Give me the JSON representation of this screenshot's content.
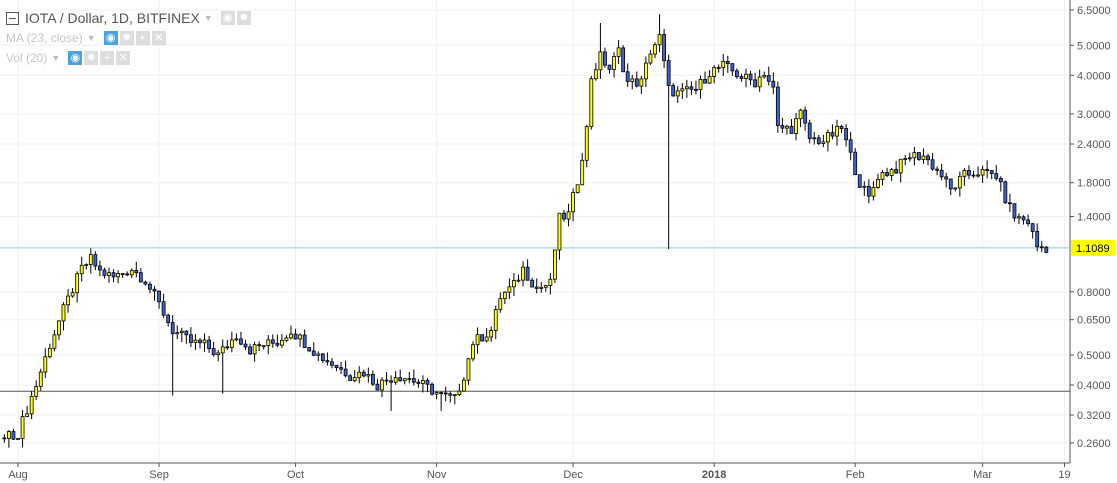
{
  "legend": {
    "title": "IOTA / Dollar, 1D, BITFINEX",
    "ma_label": "MA (23, close)",
    "vol_label": "Vol (20)"
  },
  "colors": {
    "up": "#ffff00",
    "down": "#3f62d6",
    "last_price_line": "#7fd3dc",
    "last_price_bg": "#ffff00",
    "hline": "#555555",
    "grid": "#f0f0f0"
  },
  "chart_data": {
    "type": "candlestick",
    "title": "IOTA / Dollar, 1D, BITFINEX",
    "y_scale": "log",
    "ylim": [
      0.235,
      7.0
    ],
    "xlim_days_from_aug1": [
      -4,
      233
    ],
    "y_ticks": [
      "6.5000",
      "5.0000",
      "4.0000",
      "3.0000",
      "2.4000",
      "1.8000",
      "1.4000",
      "0.8000",
      "0.6500",
      "0.5000",
      "0.4000",
      "0.3200",
      "0.2600"
    ],
    "x_ticks": [
      {
        "label": "Aug",
        "day": 0
      },
      {
        "label": "Sep",
        "day": 31
      },
      {
        "label": "Oct",
        "day": 61
      },
      {
        "label": "Nov",
        "day": 92
      },
      {
        "label": "Dec",
        "day": 122
      },
      {
        "label": "2018",
        "day": 153
      },
      {
        "label": "Feb",
        "day": 184
      },
      {
        "label": "Mar",
        "day": 212
      },
      {
        "label": "19",
        "day": 230
      }
    ],
    "last_price": 1.1089,
    "last_price_label": "1.1089",
    "horizontal_line": 0.382,
    "close_anchors": [
      [
        -3,
        0.27
      ],
      [
        0,
        0.28
      ],
      [
        4,
        0.4
      ],
      [
        7,
        0.54
      ],
      [
        10,
        0.7
      ],
      [
        14,
        0.95
      ],
      [
        16,
        1.02
      ],
      [
        18,
        0.93
      ],
      [
        21,
        0.89
      ],
      [
        25,
        0.95
      ],
      [
        28,
        0.87
      ],
      [
        31,
        0.73
      ],
      [
        34,
        0.6
      ],
      [
        38,
        0.55
      ],
      [
        41,
        0.54
      ],
      [
        44,
        0.5
      ],
      [
        48,
        0.58
      ],
      [
        51,
        0.52
      ],
      [
        54,
        0.54
      ],
      [
        57,
        0.55
      ],
      [
        60,
        0.6
      ],
      [
        63,
        0.55
      ],
      [
        66,
        0.5
      ],
      [
        70,
        0.46
      ],
      [
        73,
        0.43
      ],
      [
        76,
        0.44
      ],
      [
        79,
        0.4
      ],
      [
        83,
        0.43
      ],
      [
        86,
        0.42
      ],
      [
        89,
        0.4
      ],
      [
        93,
        0.37
      ],
      [
        96,
        0.36
      ],
      [
        98,
        0.43
      ],
      [
        100,
        0.55
      ],
      [
        104,
        0.6
      ],
      [
        106,
        0.77
      ],
      [
        109,
        0.84
      ],
      [
        111,
        0.95
      ],
      [
        114,
        0.82
      ],
      [
        117,
        0.85
      ],
      [
        118,
        1.1
      ],
      [
        119,
        1.38
      ],
      [
        121,
        1.42
      ],
      [
        123,
        1.83
      ],
      [
        125,
        2.68
      ],
      [
        126,
        3.96
      ],
      [
        128,
        4.6
      ],
      [
        130,
        4.2
      ],
      [
        132,
        4.8
      ],
      [
        134,
        3.8
      ],
      [
        137,
        3.8
      ],
      [
        139,
        4.8
      ],
      [
        141,
        5.3
      ],
      [
        143,
        3.6
      ],
      [
        145,
        3.5
      ],
      [
        149,
        3.6
      ],
      [
        152,
        4.1
      ],
      [
        155,
        4.3
      ],
      [
        159,
        3.96
      ],
      [
        162,
        3.8
      ],
      [
        164,
        4.1
      ],
      [
        166,
        3.6
      ],
      [
        167,
        2.7
      ],
      [
        170,
        2.7
      ],
      [
        172,
        3.0
      ],
      [
        174,
        2.5
      ],
      [
        177,
        2.46
      ],
      [
        181,
        2.7
      ],
      [
        183,
        2.2
      ],
      [
        185,
        1.8
      ],
      [
        187,
        1.6
      ],
      [
        189,
        1.9
      ],
      [
        193,
        2.0
      ],
      [
        196,
        2.2
      ],
      [
        199,
        2.2
      ],
      [
        203,
        1.9
      ],
      [
        205,
        1.7
      ],
      [
        208,
        1.9
      ],
      [
        211,
        1.95
      ],
      [
        215,
        1.9
      ],
      [
        217,
        1.6
      ],
      [
        219,
        1.4
      ],
      [
        222,
        1.35
      ],
      [
        224,
        1.12
      ],
      [
        226,
        1.11
      ]
    ],
    "wick_extremes": [
      {
        "day": 143,
        "low": 1.1
      },
      {
        "day": 34,
        "low": 0.37
      },
      {
        "day": 45,
        "low": 0.375
      },
      {
        "day": 82,
        "low": 0.33
      },
      {
        "day": 93,
        "low": 0.33
      },
      {
        "day": 141,
        "high": 6.3
      },
      {
        "day": 128,
        "high": 5.9
      }
    ]
  }
}
